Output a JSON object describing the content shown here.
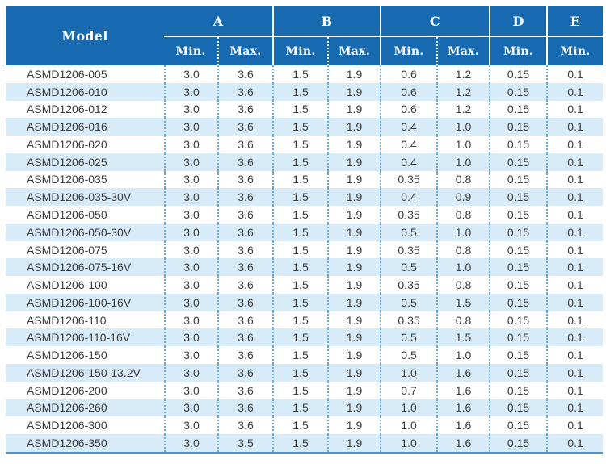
{
  "chart_data": {
    "type": "table",
    "columns": {
      "model": "Model",
      "groups": [
        {
          "label": "A",
          "subs": [
            "Min.",
            "Max."
          ]
        },
        {
          "label": "B",
          "subs": [
            "Min.",
            "Max."
          ]
        },
        {
          "label": "C",
          "subs": [
            "Min.",
            "Max."
          ]
        },
        {
          "label": "D",
          "subs": [
            "Min."
          ]
        },
        {
          "label": "E",
          "subs": [
            "Min."
          ]
        }
      ]
    },
    "rows": [
      {
        "model": "ASMD1206-005",
        "values": [
          "3.0",
          "3.6",
          "1.5",
          "1.9",
          "0.6",
          "1.2",
          "0.15",
          "0.1"
        ]
      },
      {
        "model": "ASMD1206-010",
        "values": [
          "3.0",
          "3.6",
          "1.5",
          "1.9",
          "0.6",
          "1.2",
          "0.15",
          "0.1"
        ]
      },
      {
        "model": "ASMD1206-012",
        "values": [
          "3.0",
          "3.6",
          "1.5",
          "1.9",
          "0.6",
          "1.2",
          "0.15",
          "0.1"
        ]
      },
      {
        "model": "ASMD1206-016",
        "values": [
          "3.0",
          "3.6",
          "1.5",
          "1.9",
          "0.4",
          "1.0",
          "0.15",
          "0.1"
        ]
      },
      {
        "model": "ASMD1206-020",
        "values": [
          "3.0",
          "3.6",
          "1.5",
          "1.9",
          "0.4",
          "1.0",
          "0.15",
          "0.1"
        ]
      },
      {
        "model": "ASMD1206-025",
        "values": [
          "3.0",
          "3.6",
          "1.5",
          "1.9",
          "0.4",
          "1.0",
          "0.15",
          "0.1"
        ]
      },
      {
        "model": "ASMD1206-035",
        "values": [
          "3.0",
          "3.6",
          "1.5",
          "1.9",
          "0.35",
          "0.8",
          "0.15",
          "0.1"
        ]
      },
      {
        "model": "ASMD1206-035-30V",
        "values": [
          "3.0",
          "3.6",
          "1.5",
          "1.9",
          "0.4",
          "0.9",
          "0.15",
          "0.1"
        ]
      },
      {
        "model": "ASMD1206-050",
        "values": [
          "3.0",
          "3.6",
          "1.5",
          "1.9",
          "0.35",
          "0.8",
          "0.15",
          "0.1"
        ]
      },
      {
        "model": "ASMD1206-050-30V",
        "values": [
          "3.0",
          "3.6",
          "1.5",
          "1.9",
          "0.5",
          "1.0",
          "0.15",
          "0.1"
        ]
      },
      {
        "model": "ASMD1206-075",
        "values": [
          "3.0",
          "3.6",
          "1.5",
          "1.9",
          "0.35",
          "0.8",
          "0.15",
          "0.1"
        ]
      },
      {
        "model": "ASMD1206-075-16V",
        "values": [
          "3.0",
          "3.6",
          "1.5",
          "1.9",
          "0.5",
          "1.0",
          "0.15",
          "0.1"
        ]
      },
      {
        "model": "ASMD1206-100",
        "values": [
          "3.0",
          "3.6",
          "1.5",
          "1.9",
          "0.35",
          "0.8",
          "0.15",
          "0.1"
        ]
      },
      {
        "model": "ASMD1206-100-16V",
        "values": [
          "3.0",
          "3.6",
          "1.5",
          "1.9",
          "0.5",
          "1.5",
          "0.15",
          "0.1"
        ]
      },
      {
        "model": "ASMD1206-110",
        "values": [
          "3.0",
          "3.6",
          "1.5",
          "1.9",
          "0.35",
          "0.8",
          "0.15",
          "0.1"
        ]
      },
      {
        "model": "ASMD1206-110-16V",
        "values": [
          "3.0",
          "3.6",
          "1.5",
          "1.9",
          "0.5",
          "1.5",
          "0.15",
          "0.1"
        ]
      },
      {
        "model": "ASMD1206-150",
        "values": [
          "3.0",
          "3.6",
          "1.5",
          "1.9",
          "0.5",
          "1.0",
          "0.15",
          "0.1"
        ]
      },
      {
        "model": "ASMD1206-150-13.2V",
        "values": [
          "3.0",
          "3.6",
          "1.5",
          "1.9",
          "1.0",
          "1.6",
          "0.15",
          "0.1"
        ]
      },
      {
        "model": "ASMD1206-200",
        "values": [
          "3.0",
          "3.6",
          "1.5",
          "1.9",
          "0.7",
          "1.6",
          "0.15",
          "0.1"
        ]
      },
      {
        "model": "ASMD1206-260",
        "values": [
          "3.0",
          "3.6",
          "1.5",
          "1.9",
          "1.0",
          "1.6",
          "0.15",
          "0.1"
        ]
      },
      {
        "model": "ASMD1206-300",
        "values": [
          "3.0",
          "3.6",
          "1.5",
          "1.9",
          "1.0",
          "1.6",
          "0.15",
          "0.1"
        ]
      },
      {
        "model": "ASMD1206-350",
        "values": [
          "3.0",
          "3.5",
          "1.5",
          "1.9",
          "1.0",
          "1.6",
          "0.15",
          "0.1"
        ]
      }
    ]
  },
  "colors": {
    "header_bg": "#1769b0",
    "header_text": "#ffffff",
    "row_bg": "#ffffff",
    "row_alt_bg": "#d7ecf8",
    "divider_dotted": "#66a9da",
    "bottom_border": "#4e94c9",
    "text": "#3b3b3b"
  }
}
